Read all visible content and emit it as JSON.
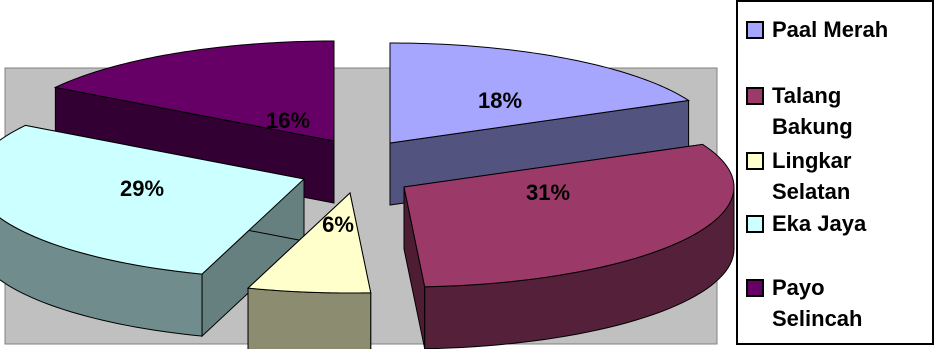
{
  "chart_data": {
    "type": "pie",
    "style": "3d-exploded",
    "categories": [
      "Paal Merah",
      "Talang Bakung",
      "Lingkar Selatan",
      "Eka Jaya",
      "Payo Selincah"
    ],
    "values": [
      18,
      31,
      6,
      29,
      16
    ],
    "value_labels": [
      "18%",
      "31%",
      "6%",
      "29%",
      "16%"
    ],
    "colors": [
      "#a6a6ff",
      "#9b3a68",
      "#ffffcc",
      "#ccffff",
      "#660066"
    ],
    "legend": {
      "placement": "right",
      "entries": [
        "Paal Merah",
        "Talang\nBakung",
        "Lingkar\nSelatan",
        "Eka Jaya",
        "Payo\nSelincah"
      ]
    },
    "plot_background": "#c0c0c0"
  }
}
